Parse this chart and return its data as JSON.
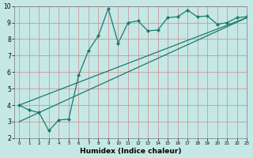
{
  "xlabel": "Humidex (Indice chaleur)",
  "xlim": [
    -0.5,
    23
  ],
  "ylim": [
    2,
    10
  ],
  "xticks": [
    0,
    1,
    2,
    3,
    4,
    5,
    6,
    7,
    8,
    9,
    10,
    11,
    12,
    13,
    14,
    15,
    16,
    17,
    18,
    19,
    20,
    21,
    22,
    23
  ],
  "yticks": [
    2,
    3,
    4,
    5,
    6,
    7,
    8,
    9,
    10
  ],
  "bg_color": "#c5e8e5",
  "grid_color": "#cc9999",
  "line_color": "#1a7a6e",
  "line1_x": [
    0,
    1,
    2,
    3,
    4,
    5,
    6,
    7,
    8,
    9,
    10,
    11,
    12,
    13,
    14,
    15,
    16,
    17,
    18,
    19,
    20,
    21,
    22,
    23
  ],
  "line1_y": [
    4.0,
    3.7,
    3.55,
    2.45,
    3.1,
    3.15,
    5.8,
    7.3,
    8.2,
    9.85,
    7.75,
    9.0,
    9.1,
    8.5,
    8.55,
    9.3,
    9.35,
    9.75,
    9.35,
    9.4,
    8.9,
    9.0,
    9.3,
    9.35
  ],
  "line2_x": [
    0,
    23
  ],
  "line2_y": [
    4.0,
    9.3
  ],
  "line3_x": [
    0,
    23
  ],
  "line3_y": [
    3.0,
    9.3
  ],
  "marker_x": [
    0,
    1,
    2,
    3,
    4,
    5,
    6,
    7,
    8,
    9,
    10,
    11,
    12,
    13,
    14,
    15,
    16,
    17,
    18,
    19,
    20,
    21,
    22,
    23
  ],
  "marker_y": [
    4.0,
    3.7,
    3.55,
    2.45,
    3.1,
    3.15,
    5.8,
    7.3,
    8.2,
    9.85,
    7.75,
    9.0,
    9.1,
    8.5,
    8.55,
    9.3,
    9.35,
    9.75,
    9.35,
    9.4,
    8.9,
    9.0,
    9.3,
    9.35
  ]
}
